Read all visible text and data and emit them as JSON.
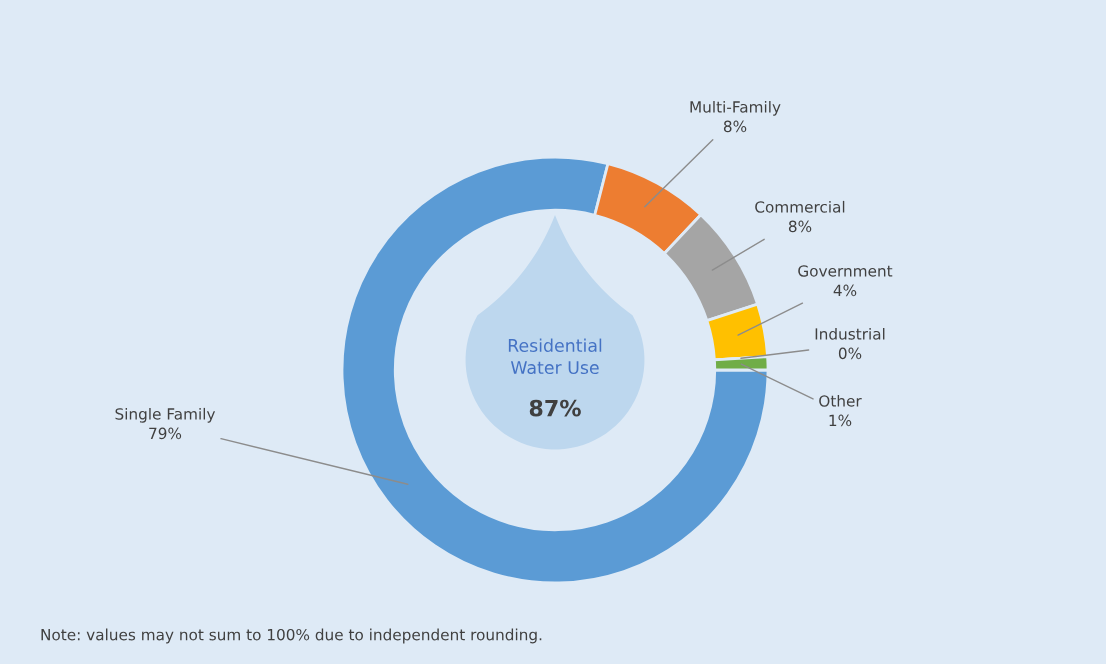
{
  "chart_data": {
    "type": "donut",
    "categories": [
      "Single Family",
      "Multi-Family",
      "Commercial",
      "Government",
      "Industrial",
      "Other"
    ],
    "values": [
      79,
      8,
      8,
      4,
      0,
      1
    ],
    "colors": [
      "#5b9bd5",
      "#ed7d31",
      "#a5a5a5",
      "#ffc000",
      "#4472c4",
      "#70ad47"
    ],
    "value_labels": [
      "79%",
      "8%",
      "8%",
      "4%",
      "0%",
      "1%"
    ],
    "annotations": [
      "Residential\nWater Use",
      "87%",
      "Note: values may not sum to 100% due to independent rounding."
    ]
  }
}
